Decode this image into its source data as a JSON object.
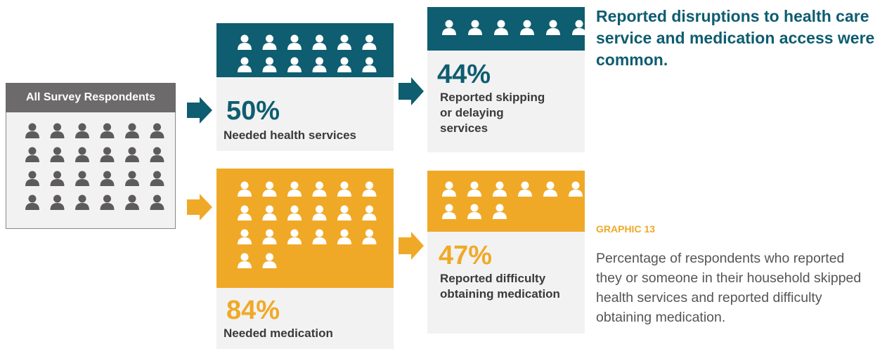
{
  "title": "Reported disruptions to health care service and medication access were common.",
  "graphic_label": "GRAPHIC 13",
  "description": "Percentage of respondents who reported they or someone in their household skipped health services and reported difficulty obtaining medication.",
  "respondents": {
    "label": "All Survey Respondents"
  },
  "boxes": [
    {
      "percent": "50%",
      "label": "Needed health services"
    },
    {
      "percent": "44%",
      "label": "Reported skipping or delaying services"
    },
    {
      "percent": "84%",
      "label": "Needed medication"
    },
    {
      "percent": "47%",
      "label": "Reported difficulty obtaining medication"
    }
  ]
}
